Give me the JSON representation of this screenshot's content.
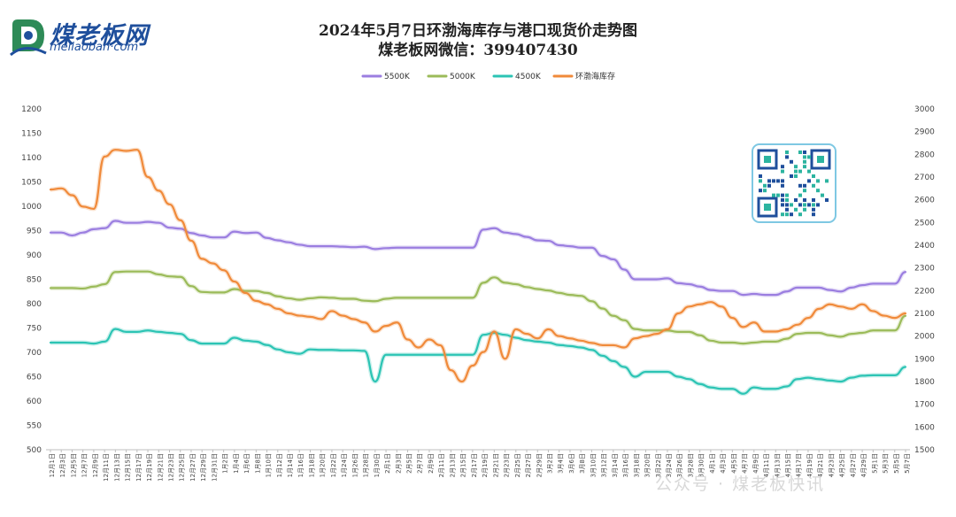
{
  "header": {
    "title": "2024年5月7日环渤海库存与港口现货价走势图",
    "subtitle": "煤老板网微信：399407430",
    "logo_text": "煤老板网",
    "logo_sub": "meilaoban·com"
  },
  "watermark": "公众号 · 煤老板快讯",
  "colors": {
    "s5500": "#9b7ee0",
    "s5000": "#9bbb59",
    "s4500": "#2cc4b4",
    "stock": "#f08a3a"
  },
  "chart_data": {
    "type": "line",
    "title": "2024年5月7日环渤海库存与港口现货价走势图",
    "y_left": {
      "min": 500,
      "max": 1200,
      "step": 50
    },
    "y_right": {
      "min": 1500,
      "max": 3000,
      "step": 100
    },
    "x_labels": [
      "12月1日",
      "12月3日",
      "12月5日",
      "12月7日",
      "12月9日",
      "12月11日",
      "12月13日",
      "12月15日",
      "12月17日",
      "12月19日",
      "12月21日",
      "12月23日",
      "12月25日",
      "12月27日",
      "12月29日",
      "12月31日",
      "1月2日",
      "1月4日",
      "1月6日",
      "1月8日",
      "1月10日",
      "1月12日",
      "1月14日",
      "1月16日",
      "1月18日",
      "1月20日",
      "1月22日",
      "1月24日",
      "1月26日",
      "1月28日",
      "1月30日",
      "2月1日",
      "2月3日",
      "2月5日",
      "2月7日",
      "2月9日",
      "2月11日",
      "2月13日",
      "2月15日",
      "2月17日",
      "2月19日",
      "2月21日",
      "2月23日",
      "2月25日",
      "2月27日",
      "2月29日",
      "3月2日",
      "3月4日",
      "3月6日",
      "3月8日",
      "3月10日",
      "3月12日",
      "3月14日",
      "3月16日",
      "3月18日",
      "3月20日",
      "3月22日",
      "3月24日",
      "3月26日",
      "3月28日",
      "3月30日",
      "4月1日",
      "4月3日",
      "4月5日",
      "4月7日",
      "4月9日",
      "4月11日",
      "4月13日",
      "4月15日",
      "4月17日",
      "4月19日",
      "4月21日",
      "4月23日",
      "4月25日",
      "4月27日",
      "4月29日",
      "5月1日",
      "5月3日",
      "5月5日",
      "5月7日"
    ],
    "legend_position": "top",
    "series": [
      {
        "name": "5500K",
        "axis": "left",
        "color": "#9b7ee0",
        "values": [
          946,
          946,
          940,
          946,
          953,
          955,
          970,
          966,
          966,
          968,
          966,
          956,
          954,
          945,
          940,
          936,
          936,
          948,
          945,
          946,
          935,
          930,
          926,
          921,
          918,
          918,
          918,
          917,
          916,
          917,
          912,
          914,
          915,
          915,
          915,
          915,
          915,
          915,
          915,
          915,
          952,
          955,
          946,
          943,
          937,
          930,
          929,
          920,
          918,
          915,
          915,
          898,
          891,
          870,
          850,
          850,
          850,
          852,
          842,
          840,
          835,
          828,
          826,
          826,
          818,
          820,
          818,
          818,
          825,
          833,
          833,
          833,
          828,
          825,
          833,
          838,
          841,
          841,
          841,
          865
        ]
      },
      {
        "name": "5000K",
        "axis": "left",
        "color": "#9bbb59",
        "values": [
          832,
          832,
          832,
          831,
          835,
          840,
          865,
          866,
          866,
          866,
          860,
          856,
          855,
          836,
          824,
          823,
          823,
          830,
          826,
          826,
          822,
          815,
          811,
          808,
          811,
          813,
          812,
          810,
          810,
          806,
          805,
          810,
          812,
          812,
          812,
          812,
          812,
          812,
          812,
          812,
          843,
          854,
          843,
          840,
          834,
          830,
          827,
          822,
          818,
          816,
          805,
          790,
          775,
          766,
          748,
          745,
          745,
          745,
          742,
          742,
          735,
          724,
          720,
          720,
          718,
          720,
          722,
          722,
          728,
          738,
          740,
          740,
          735,
          732,
          738,
          740,
          745,
          745,
          745,
          775
        ]
      },
      {
        "name": "4500K",
        "axis": "left",
        "color": "#2cc4b4",
        "values": [
          720,
          720,
          720,
          720,
          718,
          722,
          748,
          742,
          742,
          745,
          742,
          740,
          738,
          725,
          718,
          718,
          718,
          730,
          724,
          722,
          715,
          706,
          700,
          697,
          706,
          705,
          705,
          704,
          704,
          703,
          640,
          695,
          695,
          695,
          695,
          695,
          695,
          695,
          695,
          695,
          736,
          740,
          736,
          730,
          725,
          722,
          720,
          715,
          713,
          710,
          705,
          693,
          682,
          670,
          650,
          660,
          660,
          660,
          650,
          645,
          635,
          628,
          625,
          625,
          615,
          628,
          625,
          625,
          630,
          645,
          648,
          645,
          642,
          640,
          648,
          652,
          653,
          653,
          653,
          670
        ]
      },
      {
        "name": "环渤海库存",
        "axis": "right",
        "color": "#f08a3a",
        "values": [
          2645,
          2650,
          2620,
          2570,
          2560,
          2790,
          2820,
          2815,
          2820,
          2700,
          2640,
          2580,
          2510,
          2420,
          2340,
          2320,
          2290,
          2240,
          2190,
          2155,
          2140,
          2120,
          2100,
          2090,
          2085,
          2075,
          2110,
          2090,
          2075,
          2060,
          2020,
          2045,
          2060,
          1985,
          1950,
          1985,
          1960,
          1850,
          1800,
          1870,
          1930,
          2020,
          1900,
          2030,
          2010,
          1990,
          2030,
          2000,
          1990,
          1980,
          1970,
          1960,
          1960,
          1950,
          1990,
          2000,
          2010,
          2030,
          2100,
          2130,
          2140,
          2150,
          2130,
          2080,
          2040,
          2060,
          2020,
          2020,
          2030,
          2050,
          2080,
          2120,
          2140,
          2130,
          2120,
          2140,
          2110,
          2090,
          2080,
          2100
        ]
      }
    ]
  }
}
